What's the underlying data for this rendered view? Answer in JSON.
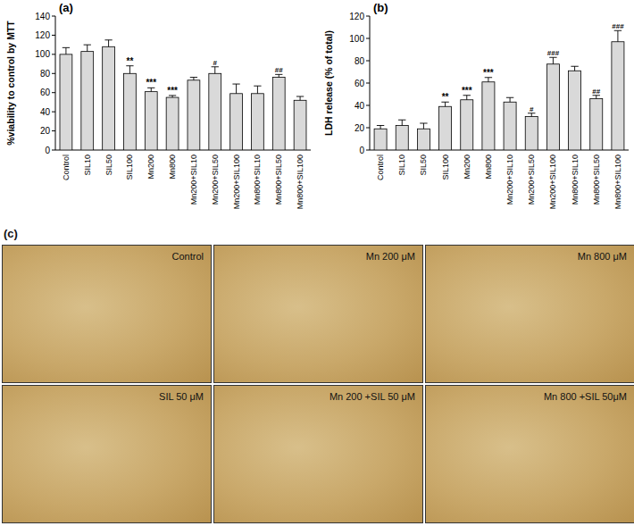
{
  "chart_data": [
    {
      "type": "bar",
      "title": "(a)",
      "y_label": "%viability to control by MTT",
      "categories": [
        "Control",
        "SIL10",
        "SIL50",
        "SIL100",
        "Mn200",
        "Mn800",
        "Mn200+SIL10",
        "Mn200+SIL50",
        "Mn200+SIL100",
        "Mn800+SIL10",
        "Mn800+SIL50",
        "Mn800+SIL100"
      ],
      "values": [
        100,
        103,
        108,
        80,
        61,
        55,
        73,
        80,
        59,
        59,
        76,
        52
      ],
      "errors": [
        7,
        7,
        7,
        8,
        4,
        2,
        3,
        7,
        10,
        8,
        3,
        4
      ],
      "annotations": [
        null,
        null,
        null,
        "**",
        "***",
        "***",
        null,
        "#",
        null,
        null,
        "##",
        null
      ],
      "color": "#d9d9d9",
      "ylim": [
        0,
        140
      ],
      "yticks": [
        0,
        20,
        40,
        60,
        80,
        100,
        120,
        140
      ],
      "grid": false
    },
    {
      "type": "bar",
      "title": "(b)",
      "y_label": "LDH release (% of total)",
      "categories": [
        "Control",
        "SIL10",
        "SIL50",
        "SIL100",
        "Mn200",
        "Mn800",
        "Mn200+SIL10",
        "Mn200+SIL50",
        "Mn200+SIL100",
        "Mn800+SIL10",
        "Mn800+SIL50",
        "Mn800+SIL100"
      ],
      "values": [
        19,
        22,
        19,
        39,
        45,
        61,
        43,
        30,
        77,
        71,
        46,
        97
      ],
      "errors": [
        3,
        5,
        5,
        4,
        4,
        4,
        4,
        3,
        6,
        4,
        3,
        10
      ],
      "annotations": [
        null,
        null,
        null,
        "**",
        "***",
        "***",
        null,
        "#",
        "###",
        null,
        "##",
        "###"
      ],
      "color": "#d9d9d9",
      "ylim": [
        0,
        120
      ],
      "yticks": [
        0,
        20,
        40,
        60,
        80,
        100,
        120
      ],
      "grid": false
    }
  ],
  "image_panel": {
    "title": "(c)",
    "images": [
      {
        "label": "Control"
      },
      {
        "label": "Mn 200 μM"
      },
      {
        "label": "Mn 800 μM"
      },
      {
        "label": "SIL 50 μM"
      },
      {
        "label": "Mn 200 +SIL 50 μM"
      },
      {
        "label": "Mn 800 +SIL 50μM"
      }
    ]
  }
}
